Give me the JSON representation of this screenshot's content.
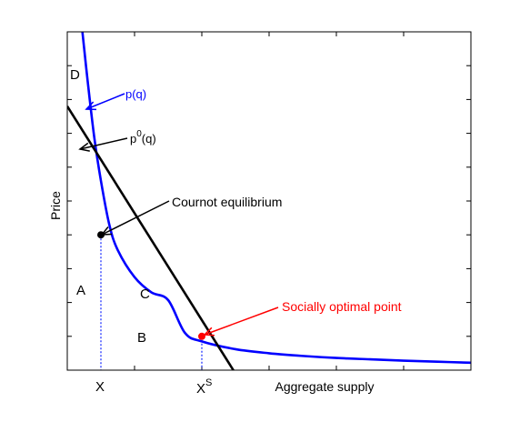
{
  "chart_data": {
    "type": "line",
    "title": "",
    "xlabel": "Aggregate supply",
    "ylabel": "Price",
    "xlim": [
      0,
      12
    ],
    "ylim": [
      0,
      10
    ],
    "grid": false,
    "legend": "none",
    "series": [
      {
        "name": "p(q)",
        "color": "#0000ff",
        "x": [
          0.45,
          0.6,
          0.8,
          1.0,
          1.25,
          1.5,
          2.0,
          2.5,
          3.0,
          3.5,
          4.0,
          5.0,
          6.0,
          7.0,
          8.0,
          9.0,
          10.0,
          11.0,
          12.0
        ],
        "y": [
          10.0,
          8.6,
          6.9,
          5.6,
          4.3,
          3.55,
          2.75,
          2.3,
          2.07,
          1.1,
          0.85,
          0.62,
          0.5,
          0.42,
          0.36,
          0.32,
          0.28,
          0.25,
          0.22
        ]
      },
      {
        "name": "p⁰(q)",
        "color": "#000000",
        "x": [
          0.0,
          5.0
        ],
        "y": [
          7.8,
          -0.1
        ]
      }
    ],
    "points": [
      {
        "name": "cournot",
        "x": 1.0,
        "y": 4.0,
        "color": "#000000"
      },
      {
        "name": "social_optimum",
        "x": 4.0,
        "y": 1.0,
        "color": "#ff0000"
      }
    ],
    "xtick_labels": [
      "X",
      "Xˢ"
    ],
    "annotations": {
      "D": "D",
      "pq": "p(q)",
      "p0q_base": "p",
      "p0q_sup": "0",
      "p0q_tail": "(q)",
      "cournot": "Cournot equilibrium",
      "social": "Socially optimal point",
      "A": "A",
      "B": "B",
      "C": "C",
      "X": "X",
      "XS_base": "X",
      "XS_sup": "S"
    }
  }
}
